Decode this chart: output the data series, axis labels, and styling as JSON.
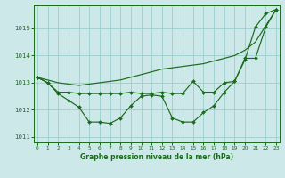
{
  "background_color": "#cce8e8",
  "grid_color": "#99cccc",
  "line_color": "#1a6b1a",
  "ylim": [
    1010.8,
    1015.85
  ],
  "yticks": [
    1011,
    1012,
    1013,
    1014,
    1015
  ],
  "xlim": [
    -0.3,
    23.3
  ],
  "xticks": [
    0,
    1,
    2,
    3,
    4,
    5,
    6,
    7,
    8,
    9,
    10,
    11,
    12,
    13,
    14,
    15,
    16,
    17,
    18,
    19,
    20,
    21,
    22,
    23
  ],
  "xlabel": "Graphe pression niveau de la mer (hPa)",
  "series_wavy": [
    1013.2,
    1013.0,
    1012.6,
    1012.35,
    1012.1,
    1011.55,
    1011.55,
    1011.5,
    1011.7,
    1012.15,
    1012.5,
    1012.55,
    1012.5,
    1011.7,
    1011.55,
    1011.55,
    1011.9,
    1012.15,
    1012.65,
    1013.05,
    1013.85,
    1015.05,
    1015.55,
    1015.7
  ],
  "series_flat": [
    1013.2,
    1013.0,
    1012.65,
    1012.65,
    1012.6,
    1012.6,
    1012.6,
    1012.6,
    1012.6,
    1012.65,
    1012.6,
    1012.6,
    1012.65,
    1012.6,
    1012.6,
    1013.05,
    1012.65,
    1012.65,
    1013.0,
    1013.05,
    1013.9,
    1013.9,
    1015.05,
    1015.7
  ],
  "series_rising": [
    1013.2,
    1013.1,
    1013.0,
    1012.95,
    1012.9,
    1012.95,
    1013.0,
    1013.05,
    1013.1,
    1013.2,
    1013.3,
    1013.4,
    1013.5,
    1013.55,
    1013.6,
    1013.65,
    1013.7,
    1013.8,
    1013.9,
    1014.0,
    1014.2,
    1014.5,
    1015.1,
    1015.7
  ]
}
